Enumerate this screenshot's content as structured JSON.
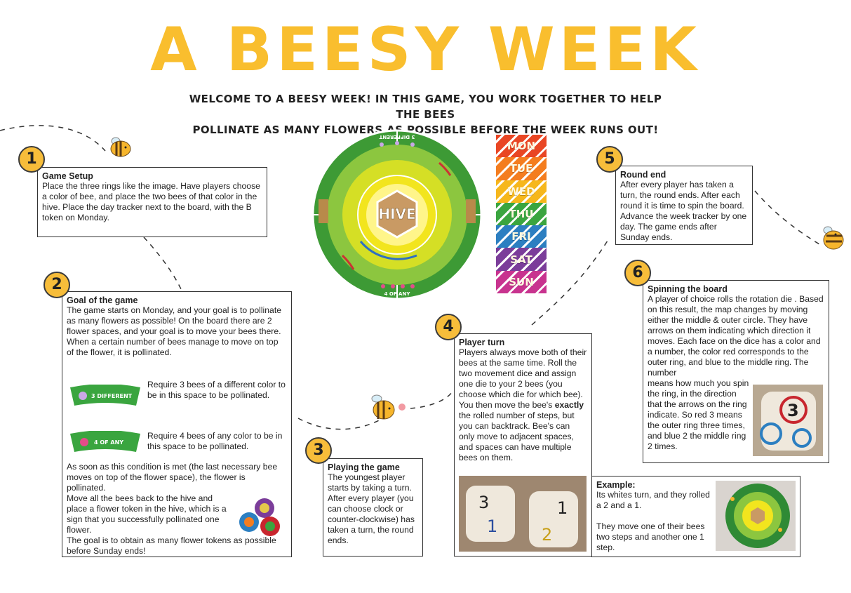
{
  "title": "A BEESY WEEK",
  "subtitle_line1": "WELCOME TO A BEESY WEEK! IN THIS GAME, YOU WORK TOGETHER TO HELP THE BEES",
  "subtitle_line2": "POLLINATE AS MANY FLOWERS AS POSSIBLE BEFORE THE WEEK RUNS OUT!",
  "board": {
    "hive": "HIVE",
    "top_label": "3 DIFFERENT",
    "bottom_label": "4 OF ANY"
  },
  "day_tracker": [
    "MON",
    "TUE",
    "WED",
    "THU",
    "FRI",
    "SAT",
    "SUN"
  ],
  "day_colors": [
    "#e94624",
    "#f47d1f",
    "#f6b71c",
    "#3aa53f",
    "#2c7fc1",
    "#7b3d9a",
    "#c8338f"
  ],
  "sections": {
    "s1": {
      "number": "1",
      "title": "Game Setup",
      "text": "Place the three rings like the image. Have players choose a color of bee, and place the two bees of that color in the hive. Place the day tracker next to the board, with the B token on Monday."
    },
    "s2": {
      "number": "2",
      "title": "Goal of the game",
      "text": "The game starts on Monday, and your goal is to pollinate as many flowers as possible! On the board there are 2 flower spaces, and your goal is to move your bees there. When a certain number of bees manage to move on top of the flower, it is pollinated.",
      "token1_label": "3 DIFFERENT",
      "req1": "Require 3 bees of a different color to be in this space to be pollinated.",
      "token2_label": "4 OF ANY",
      "req2": "Require 4 bees of any color to be in this space to be pollinated.",
      "para_a": "As soon as this condition is met (the last necessary bee moves on top of the flower space), the flower is pollinated.",
      "para_b": "Move all the bees back to the hive and place a flower token in the hive, which is a sign that you successfully pollinated one flower.",
      "para_c": "The goal is to obtain as many flower tokens as possible before Sunday ends!"
    },
    "s3": {
      "number": "3",
      "title": "Playing the game",
      "text": "The youngest player starts by taking a turn. After every player (you can choose clock or counter-clockwise) has taken a turn, the round ends."
    },
    "s4": {
      "number": "4",
      "title": "Player turn",
      "text_a": "Players always move both of their bees at the same time. Roll the two movement dice and assign one die to your 2 bees (you choose which die for which bee). You then move the bee's ",
      "text_bold": "exactly",
      "text_b": " the rolled number of steps, but you can backtrack. Bee's can only move to adjacent spaces, and spaces can have multiple bees on them."
    },
    "s5": {
      "number": "5",
      "title": "Round end",
      "text": "After every player has taken a turn, the round ends. After each round it is time to spin the board. Advance the week tracker by one day. The game ends after Sunday ends."
    },
    "s6": {
      "number": "6",
      "title": "Spinning the board",
      "text_a": "A player of choice rolls the rotation die . Based on this result, the map changes by moving either the middle & outer circle. They have arrows on them indicating which direction it moves. Each face on the dice has a color and a number, the color red corresponds to the outer ring, and blue to the middle ring. The number",
      "text_b": "means how much you spin the ring, in the direction that the arrows on the ring indicate. So red 3 means the outer ring three times, and blue 2 the middle ring 2 times."
    },
    "example": {
      "title": "Example:",
      "text_a": "Its whites turn, and they rolled a 2 and a 1.",
      "text_b": "They move one of their bees two steps and another one 1 step."
    }
  }
}
